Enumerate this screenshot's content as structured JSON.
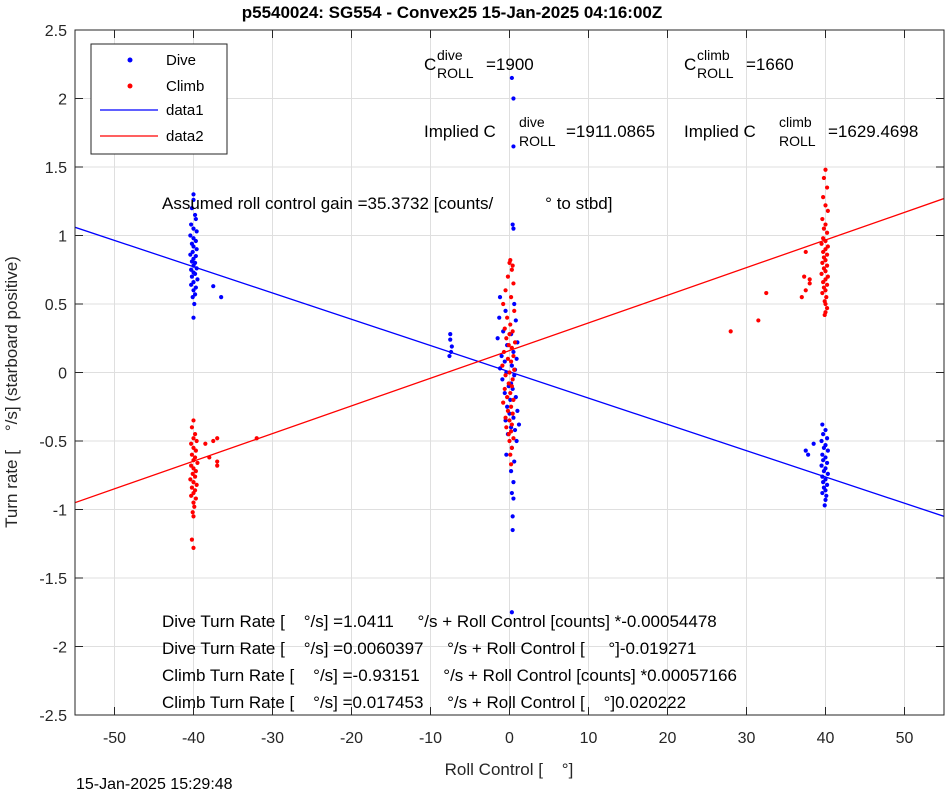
{
  "figure": {
    "title": "p5540024: SG554 - Convex25 15-Jan-2025 04:16:00Z",
    "timestamp": "15-Jan-2025 15:29:48"
  },
  "annotations": {
    "c_roll_dive": {
      "prefix": "C",
      "sup": "dive",
      "sub": "ROLL",
      "value": "=1900"
    },
    "c_roll_climb": {
      "prefix": "C",
      "sup": "climb",
      "sub": "ROLL",
      "value": "=1660"
    },
    "implied_dive": {
      "prefix": "Implied C",
      "sup": "dive",
      "sub": "ROLL",
      "value": "=1911.0865"
    },
    "implied_climb": {
      "prefix": "Implied C",
      "sup": "climb",
      "sub": "ROLL",
      "value": "=1629.4698"
    },
    "gain": "Assumed roll control gain =35.3732 [counts/           ° to stbd]",
    "fit_lines": [
      "Dive Turn Rate [    °/s] =1.0411     °/s + Roll Control [counts] *-0.00054478",
      "Dive Turn Rate [    °/s] =0.0060397     °/s + Roll Control [     °]-0.019271",
      "Climb Turn Rate [    °/s] =-0.93151     °/s + Roll Control [counts] *0.00057166",
      "Climb Turn Rate [    °/s] =0.017453     °/s + Roll Control [    °]0.020222"
    ]
  },
  "chart_data": {
    "type": "scatter",
    "title": "p5540024: SG554 - Convex25 15-Jan-2025 04:16:00Z",
    "xlabel": "Roll Control [    °]",
    "ylabel": "Turn rate [    °/s] (starboard positive)",
    "xlim": [
      -55,
      55
    ],
    "ylim": [
      -2.5,
      2.5
    ],
    "xticks": [
      -50,
      -40,
      -30,
      -20,
      -10,
      0,
      10,
      20,
      30,
      40,
      50
    ],
    "yticks": [
      -2.5,
      -2,
      -1.5,
      -1,
      -0.5,
      0,
      0.5,
      1,
      1.5,
      2,
      2.5
    ],
    "xtick_labels": [
      "-50",
      "-40",
      "-30",
      "-20",
      "-10",
      "0",
      "10",
      "20",
      "30",
      "40",
      "50"
    ],
    "ytick_labels": [
      "-2.5",
      "-2",
      "-1.5",
      "-1",
      "-0.5",
      "0",
      "0.5",
      "1",
      "1.5",
      "2",
      "2.5"
    ],
    "grid": true,
    "legend_position": "top-left",
    "legend": [
      "Dive",
      "Climb",
      "data1",
      "data2"
    ],
    "series": [
      {
        "name": "Dive",
        "kind": "points",
        "color": "#0000ff",
        "points": [
          [
            -40,
            1.3
          ],
          [
            -40,
            1.26
          ],
          [
            -40.2,
            1.2
          ],
          [
            -39.8,
            1.15
          ],
          [
            -39.7,
            1.12
          ],
          [
            -40.3,
            1.08
          ],
          [
            -40,
            1.05
          ],
          [
            -39.6,
            1.03
          ],
          [
            -40.4,
            1.0
          ],
          [
            -40,
            0.98
          ],
          [
            -39.7,
            0.96
          ],
          [
            -40.2,
            0.94
          ],
          [
            -40,
            0.92
          ],
          [
            -39.6,
            0.9
          ],
          [
            -40.1,
            0.88
          ],
          [
            -40.4,
            0.86
          ],
          [
            -39.7,
            0.85
          ],
          [
            -40,
            0.83
          ],
          [
            -40.2,
            0.81
          ],
          [
            -39.8,
            0.8
          ],
          [
            -40,
            0.78
          ],
          [
            -39.6,
            0.76
          ],
          [
            -40.3,
            0.75
          ],
          [
            -40,
            0.73
          ],
          [
            -39.8,
            0.72
          ],
          [
            -40.2,
            0.7
          ],
          [
            -39.5,
            0.68
          ],
          [
            -40,
            0.66
          ],
          [
            -40.3,
            0.64
          ],
          [
            -39.7,
            0.62
          ],
          [
            -40,
            0.6
          ],
          [
            -39.8,
            0.57
          ],
          [
            -40.1,
            0.55
          ],
          [
            -39.9,
            0.5
          ],
          [
            -40,
            0.4
          ],
          [
            -37.5,
            0.63
          ],
          [
            -36.5,
            0.55
          ],
          [
            -7.5,
            0.28
          ],
          [
            -7.5,
            0.24
          ],
          [
            -7.3,
            0.19
          ],
          [
            -7.4,
            0.15
          ],
          [
            -7.6,
            0.12
          ],
          [
            0.3,
            2.15
          ],
          [
            0.5,
            2.0
          ],
          [
            0.5,
            1.65
          ],
          [
            0.4,
            1.08
          ],
          [
            0.5,
            1.05
          ],
          [
            -1.2,
            0.55
          ],
          [
            -0.5,
            0.45
          ],
          [
            0.6,
            0.5
          ],
          [
            -1.3,
            0.4
          ],
          [
            0.8,
            0.38
          ],
          [
            -0.8,
            0.3
          ],
          [
            0.2,
            0.28
          ],
          [
            -1.5,
            0.25
          ],
          [
            1.0,
            0.22
          ],
          [
            -0.3,
            0.2
          ],
          [
            0.5,
            0.15
          ],
          [
            -1.0,
            0.12
          ],
          [
            0.9,
            0.1
          ],
          [
            -0.6,
            0.08
          ],
          [
            0.3,
            0.05
          ],
          [
            -1.2,
            0.03
          ],
          [
            0.7,
            0.02
          ],
          [
            -0.4,
            0.0
          ],
          [
            0.6,
            -0.02
          ],
          [
            -0.9,
            -0.05
          ],
          [
            0.2,
            -0.08
          ],
          [
            -0.1,
            -0.1
          ],
          [
            0.4,
            -0.12
          ],
          [
            -0.6,
            -0.15
          ],
          [
            0.8,
            -0.18
          ],
          [
            0.1,
            -0.2
          ],
          [
            -0.3,
            -0.25
          ],
          [
            1.0,
            -0.28
          ],
          [
            0.0,
            -0.3
          ],
          [
            0.5,
            -0.33
          ],
          [
            -0.5,
            -0.35
          ],
          [
            1.2,
            -0.38
          ],
          [
            0.2,
            -0.4
          ],
          [
            0.7,
            -0.42
          ],
          [
            -0.2,
            -0.45
          ],
          [
            0.9,
            -0.5
          ],
          [
            0.3,
            -0.55
          ],
          [
            -0.4,
            -0.6
          ],
          [
            0.6,
            -0.65
          ],
          [
            0.2,
            -0.72
          ],
          [
            0.5,
            -0.8
          ],
          [
            0.3,
            -0.88
          ],
          [
            0.5,
            -0.92
          ],
          [
            0.4,
            -1.05
          ],
          [
            0.4,
            -1.15
          ],
          [
            0.3,
            -1.75
          ],
          [
            37.5,
            -0.57
          ],
          [
            37.8,
            -0.6
          ],
          [
            38.5,
            -0.52
          ],
          [
            39.6,
            -0.38
          ],
          [
            40,
            -0.42
          ],
          [
            39.7,
            -0.45
          ],
          [
            40.2,
            -0.48
          ],
          [
            39.5,
            -0.5
          ],
          [
            40,
            -0.53
          ],
          [
            39.8,
            -0.55
          ],
          [
            40.3,
            -0.57
          ],
          [
            39.6,
            -0.6
          ],
          [
            40,
            -0.62
          ],
          [
            39.7,
            -0.64
          ],
          [
            40.2,
            -0.66
          ],
          [
            39.5,
            -0.68
          ],
          [
            40,
            -0.7
          ],
          [
            39.8,
            -0.72
          ],
          [
            40.3,
            -0.74
          ],
          [
            39.6,
            -0.76
          ],
          [
            40,
            -0.78
          ],
          [
            39.7,
            -0.8
          ],
          [
            40.2,
            -0.82
          ],
          [
            39.8,
            -0.84
          ],
          [
            40,
            -0.86
          ],
          [
            39.6,
            -0.88
          ],
          [
            40.1,
            -0.9
          ],
          [
            40,
            -0.93
          ],
          [
            39.9,
            -0.97
          ]
        ]
      },
      {
        "name": "Climb",
        "kind": "points",
        "color": "#ff0000",
        "points": [
          [
            -40,
            -0.35
          ],
          [
            -40.2,
            -0.4
          ],
          [
            -39.8,
            -0.45
          ],
          [
            -40,
            -0.48
          ],
          [
            -39.6,
            -0.5
          ],
          [
            -40.3,
            -0.52
          ],
          [
            -40,
            -0.55
          ],
          [
            -39.7,
            -0.57
          ],
          [
            -40.2,
            -0.6
          ],
          [
            -39.8,
            -0.62
          ],
          [
            -40,
            -0.64
          ],
          [
            -39.5,
            -0.66
          ],
          [
            -40.3,
            -0.68
          ],
          [
            -40,
            -0.7
          ],
          [
            -39.7,
            -0.72
          ],
          [
            -40.1,
            -0.74
          ],
          [
            -39.8,
            -0.76
          ],
          [
            -40.4,
            -0.78
          ],
          [
            -40,
            -0.8
          ],
          [
            -39.6,
            -0.82
          ],
          [
            -40.2,
            -0.84
          ],
          [
            -39.8,
            -0.86
          ],
          [
            -40,
            -0.88
          ],
          [
            -40.3,
            -0.9
          ],
          [
            -39.7,
            -0.92
          ],
          [
            -40,
            -0.95
          ],
          [
            -39.9,
            -0.98
          ],
          [
            -40.1,
            -1.02
          ],
          [
            -40,
            -1.05
          ],
          [
            -40.2,
            -1.22
          ],
          [
            -40,
            -1.28
          ],
          [
            -38.5,
            -0.52
          ],
          [
            -37.5,
            -0.5
          ],
          [
            -37,
            -0.48
          ],
          [
            -38.0,
            -0.62
          ],
          [
            -37.0,
            -0.65
          ],
          [
            -37.0,
            -0.68
          ],
          [
            -32,
            -0.48
          ],
          [
            0.0,
            0.8
          ],
          [
            0.4,
            0.78
          ],
          [
            0.3,
            0.75
          ],
          [
            -0.2,
            0.7
          ],
          [
            0.5,
            0.65
          ],
          [
            -0.5,
            0.6
          ],
          [
            0.2,
            0.55
          ],
          [
            -0.8,
            0.5
          ],
          [
            0.6,
            0.45
          ],
          [
            -0.3,
            0.4
          ],
          [
            0.1,
            0.35
          ],
          [
            -0.6,
            0.32
          ],
          [
            0.4,
            0.3
          ],
          [
            0.0,
            0.28
          ],
          [
            -0.4,
            0.25
          ],
          [
            0.7,
            0.22
          ],
          [
            -0.1,
            0.2
          ],
          [
            0.3,
            0.18
          ],
          [
            -0.7,
            0.15
          ],
          [
            0.5,
            0.12
          ],
          [
            -0.2,
            0.1
          ],
          [
            0.2,
            0.08
          ],
          [
            -0.9,
            0.05
          ],
          [
            0.6,
            0.02
          ],
          [
            0.0,
            0.0
          ],
          [
            -0.5,
            -0.02
          ],
          [
            0.4,
            -0.05
          ],
          [
            -0.1,
            -0.08
          ],
          [
            0.3,
            -0.1
          ],
          [
            -0.6,
            -0.12
          ],
          [
            0.1,
            -0.15
          ],
          [
            -0.3,
            -0.18
          ],
          [
            0.5,
            -0.2
          ],
          [
            -0.8,
            -0.22
          ],
          [
            0.2,
            -0.25
          ],
          [
            -0.2,
            -0.28
          ],
          [
            0.4,
            -0.3
          ],
          [
            -0.5,
            -0.33
          ],
          [
            0.0,
            -0.35
          ],
          [
            0.3,
            -0.38
          ],
          [
            -0.4,
            -0.4
          ],
          [
            0.2,
            -0.43
          ],
          [
            -0.1,
            -0.45
          ],
          [
            0.5,
            -0.48
          ],
          [
            0.0,
            -0.5
          ],
          [
            0.3,
            -0.55
          ],
          [
            0.1,
            -0.6
          ],
          [
            0.2,
            -0.67
          ],
          [
            0.1,
            0.82
          ],
          [
            28,
            0.3
          ],
          [
            31.5,
            0.38
          ],
          [
            32.5,
            0.58
          ],
          [
            37,
            0.55
          ],
          [
            37.5,
            0.6
          ],
          [
            38,
            0.65
          ],
          [
            37.3,
            0.7
          ],
          [
            38,
            0.68
          ],
          [
            37.5,
            0.88
          ],
          [
            40,
            1.48
          ],
          [
            39.8,
            1.42
          ],
          [
            40.2,
            1.35
          ],
          [
            39.7,
            1.28
          ],
          [
            40,
            1.22
          ],
          [
            40.3,
            1.18
          ],
          [
            39.6,
            1.12
          ],
          [
            40,
            1.08
          ],
          [
            39.8,
            1.05
          ],
          [
            40.2,
            1.02
          ],
          [
            39.7,
            0.98
          ],
          [
            40,
            0.96
          ],
          [
            39.5,
            0.94
          ],
          [
            40.3,
            0.92
          ],
          [
            40,
            0.9
          ],
          [
            39.7,
            0.88
          ],
          [
            40.2,
            0.86
          ],
          [
            39.8,
            0.84
          ],
          [
            40,
            0.82
          ],
          [
            39.6,
            0.8
          ],
          [
            40.2,
            0.78
          ],
          [
            39.8,
            0.76
          ],
          [
            40,
            0.74
          ],
          [
            39.5,
            0.72
          ],
          [
            40.3,
            0.7
          ],
          [
            40,
            0.68
          ],
          [
            39.7,
            0.66
          ],
          [
            40.2,
            0.64
          ],
          [
            39.8,
            0.62
          ],
          [
            40,
            0.6
          ],
          [
            39.6,
            0.58
          ],
          [
            40.1,
            0.55
          ],
          [
            39.9,
            0.52
          ],
          [
            40,
            0.5
          ],
          [
            40.2,
            0.47
          ],
          [
            40,
            0.44
          ],
          [
            39.9,
            0.42
          ]
        ]
      },
      {
        "name": "data1",
        "kind": "line",
        "color": "#0000ff",
        "x": [
          -55,
          55
        ],
        "y": [
          1.06,
          -1.05
        ]
      },
      {
        "name": "data2",
        "kind": "line",
        "color": "#ff0000",
        "x": [
          -55,
          55
        ],
        "y": [
          -0.95,
          1.27
        ]
      }
    ]
  }
}
